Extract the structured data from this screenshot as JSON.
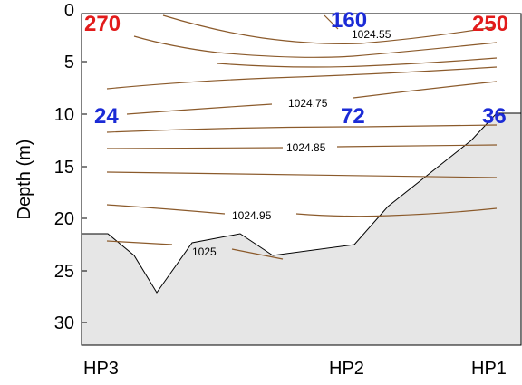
{
  "chart_data": {
    "type": "contour",
    "ylabel": "Depth (m)",
    "ylim": [
      0,
      32
    ],
    "y_inverted": true,
    "y_ticks": [
      "0",
      "5",
      "10",
      "15",
      "20",
      "25",
      "30"
    ],
    "stations": [
      "HP3",
      "HP2",
      "HP1"
    ],
    "contour_labels": [
      "1024.55",
      "1024.75",
      "1024.85",
      "1024.95",
      "1025"
    ],
    "surface_values": [
      {
        "station": "HP3",
        "value": "270",
        "color": "#e21b1b"
      },
      {
        "station": "HP2",
        "value": "160",
        "color": "#1b2bd6"
      },
      {
        "station": "HP1",
        "value": "250",
        "color": "#e21b1b"
      }
    ],
    "mid_values": [
      {
        "station": "HP3",
        "value": "24",
        "color": "#1b2bd6"
      },
      {
        "station": "HP2",
        "value": "72",
        "color": "#1b2bd6"
      },
      {
        "station": "HP1",
        "value": "36",
        "color": "#1b2bd6"
      }
    ],
    "colors": {
      "contour": "#8b5a2b",
      "bottom_fill": "#e6e6e6",
      "bottom_line": "#000000"
    }
  }
}
